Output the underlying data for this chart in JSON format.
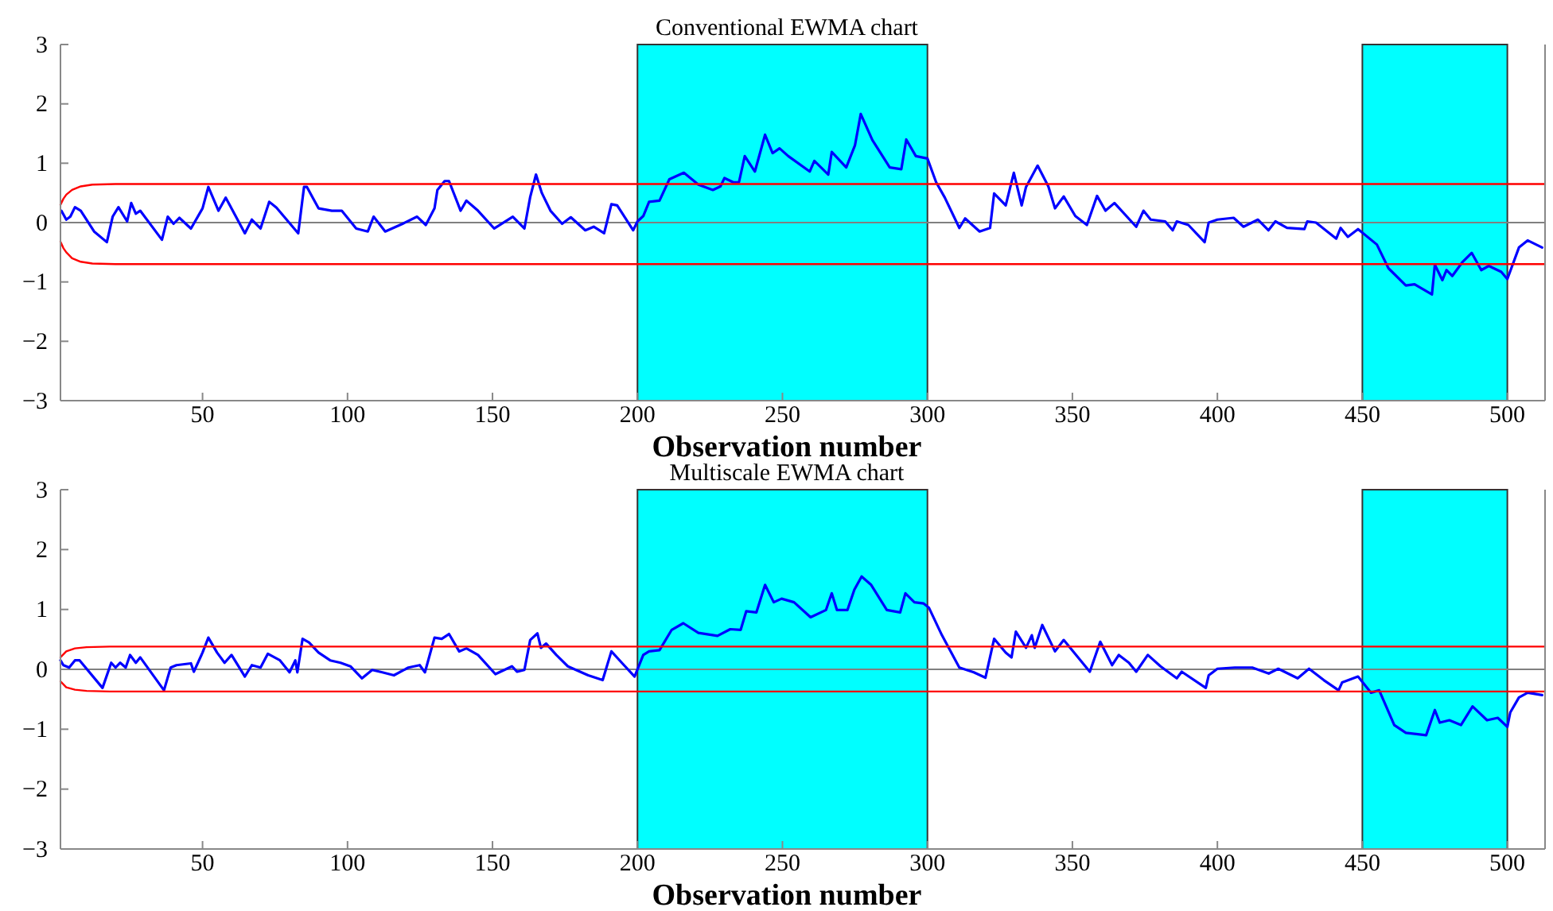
{
  "chart_data": [
    {
      "type": "line",
      "title": "Conventional EWMA chart",
      "xlabel": "Observation number",
      "xlim": [
        1,
        513
      ],
      "ylim": [
        -3,
        3
      ],
      "xticks": [
        50,
        100,
        150,
        200,
        250,
        300,
        350,
        400,
        450,
        500
      ],
      "yticks": [
        -3,
        -2,
        -1,
        0,
        1,
        2,
        3
      ],
      "bands": [
        {
          "axis": "x",
          "from": 200,
          "to": 300,
          "color": "#00ffff"
        },
        {
          "axis": "x",
          "from": 450,
          "to": 500,
          "color": "#00ffff"
        }
      ],
      "ref_lines": [
        {
          "axis": "y",
          "value": 0,
          "color": "#808080"
        }
      ],
      "series": [
        {
          "color": "#0000ff",
          "x": [
            1.3,
            3,
            4.4,
            6,
            8,
            12.6,
            17,
            19,
            21,
            24,
            25.4,
            27,
            28.5,
            36,
            38,
            40,
            42,
            46,
            50,
            52,
            55.5,
            58,
            64.6,
            67,
            70,
            73,
            75.5,
            83,
            85,
            86,
            90,
            94.6,
            98,
            103,
            107,
            109,
            113,
            119,
            124,
            127,
            130,
            131,
            133.5,
            135,
            139,
            141,
            145,
            150.6,
            157,
            161,
            163,
            165,
            167,
            170,
            174,
            177,
            182,
            184.9,
            188.5,
            191,
            193,
            198.5,
            200,
            202,
            204,
            207.6,
            211,
            216,
            221,
            226,
            228.6,
            230,
            233,
            235,
            237,
            240.5,
            244,
            246.6,
            249,
            252,
            259.4,
            261,
            265.8,
            267,
            272,
            275,
            277,
            281,
            287,
            291,
            292.7,
            296,
            300,
            303,
            306,
            311,
            313,
            318,
            321.6,
            323,
            327,
            329.8,
            332.5,
            334,
            338,
            341.7,
            344,
            347,
            351,
            355,
            358.5,
            361.4,
            364.5,
            372,
            374.5,
            377,
            382,
            384.6,
            386,
            390,
            395.6,
            397,
            400,
            405.6,
            409,
            414,
            417.6,
            420,
            424,
            430,
            431,
            434,
            441,
            442.5,
            445,
            448.5,
            455,
            459,
            465,
            468,
            474,
            475,
            477.6,
            479,
            481,
            484.6,
            487.7,
            491,
            493.6,
            497.9,
            500,
            504,
            507,
            512
          ],
          "values": [
            0.2,
            0.05,
            0.1,
            0.26,
            0.2,
            -0.15,
            -0.33,
            0.1,
            0.26,
            0.02,
            0.33,
            0.15,
            0.2,
            -0.29,
            0.1,
            -0.02,
            0.08,
            -0.1,
            0.24,
            0.6,
            0.2,
            0.42,
            -0.18,
            0.05,
            -0.1,
            0.35,
            0.25,
            -0.18,
            0.6,
            0.6,
            0.24,
            0.2,
            0.2,
            -0.1,
            -0.15,
            0.1,
            -0.15,
            -0.02,
            0.1,
            -0.04,
            0.24,
            0.55,
            0.7,
            0.7,
            0.2,
            0.37,
            0.2,
            -0.1,
            0.1,
            -0.1,
            0.43,
            0.81,
            0.5,
            0.2,
            -0.02,
            0.09,
            -0.13,
            -0.07,
            -0.18,
            0.31,
            0.29,
            -0.13,
            0.02,
            0.11,
            0.35,
            0.37,
            0.73,
            0.84,
            0.64,
            0.55,
            0.61,
            0.75,
            0.68,
            0.68,
            1.12,
            0.86,
            1.48,
            1.17,
            1.25,
            1.12,
            0.86,
            1.04,
            0.81,
            1.19,
            0.93,
            1.3,
            1.83,
            1.39,
            0.93,
            0.9,
            1.4,
            1.12,
            1.08,
            0.68,
            0.42,
            -0.09,
            0.07,
            -0.15,
            -0.09,
            0.49,
            0.29,
            0.84,
            0.29,
            0.6,
            0.96,
            0.61,
            0.24,
            0.44,
            0.11,
            -0.04,
            0.45,
            0.2,
            0.33,
            -0.07,
            0.2,
            0.05,
            0.02,
            -0.13,
            0.02,
            -0.04,
            -0.33,
            0,
            0.05,
            0.08,
            -0.07,
            0.05,
            -0.13,
            0.02,
            -0.09,
            -0.11,
            0.02,
            0,
            -0.27,
            -0.09,
            -0.24,
            -0.11,
            -0.37,
            -0.77,
            -1.06,
            -1.04,
            -1.21,
            -0.71,
            -0.97,
            -0.8,
            -0.9,
            -0.66,
            -0.51,
            -0.8,
            -0.73,
            -0.83,
            -0.95,
            -0.42,
            -0.3,
            -0.42
          ]
        },
        {
          "color": "#ff0000",
          "x": [
            1,
            2,
            3,
            5,
            8,
            12,
            20,
            513
          ],
          "values": [
            0.3,
            0.4,
            0.47,
            0.55,
            0.61,
            0.64,
            0.65,
            0.65
          ]
        },
        {
          "color": "#ff0000",
          "x": [
            1,
            2,
            3,
            5,
            8,
            12,
            20,
            513
          ],
          "values": [
            -0.32,
            -0.43,
            -0.5,
            -0.6,
            -0.66,
            -0.69,
            -0.7,
            -0.7
          ]
        }
      ]
    },
    {
      "type": "line",
      "title": "Multiscale EWMA chart",
      "xlabel": "Observation number",
      "xlim": [
        1,
        513
      ],
      "ylim": [
        -3,
        3
      ],
      "xticks": [
        50,
        100,
        150,
        200,
        250,
        300,
        350,
        400,
        450,
        500
      ],
      "yticks": [
        -3,
        -2,
        -1,
        0,
        1,
        2,
        3
      ],
      "bands": [
        {
          "axis": "x",
          "from": 200,
          "to": 300,
          "color": "#00ffff"
        },
        {
          "axis": "x",
          "from": 450,
          "to": 500,
          "color": "#00ffff"
        }
      ],
      "ref_lines": [
        {
          "axis": "y",
          "value": 0,
          "color": "#808080"
        }
      ],
      "series": [
        {
          "color": "#0000ff",
          "x": [
            1,
            2,
            4,
            6,
            7.6,
            15.5,
            18.5,
            20,
            21.6,
            23.5,
            25,
            27,
            28.5,
            36.7,
            39,
            41,
            46,
            47,
            50,
            52,
            55,
            57.6,
            60,
            64.6,
            67,
            70,
            72.5,
            76.7,
            80,
            82,
            82.7,
            84.5,
            86.7,
            90,
            94,
            97.6,
            101,
            105,
            108.5,
            112,
            116,
            121,
            124.9,
            126.7,
            130,
            132.5,
            135,
            138.5,
            141,
            145,
            151,
            156.7,
            158.5,
            161,
            163,
            165.5,
            166.7,
            168.5,
            172,
            176,
            183,
            188,
            191,
            194.6,
            199,
            202,
            204,
            207.6,
            211.8,
            215.8,
            221,
            227.6,
            232,
            235.6,
            237.5,
            241,
            244,
            247,
            249.7,
            254,
            259.7,
            265,
            267,
            268.8,
            272.4,
            274.8,
            277.3,
            280.6,
            286,
            290.6,
            292.4,
            295.5,
            298.7,
            300.5,
            305,
            311,
            316,
            320,
            323,
            327,
            329,
            330.5,
            334,
            336,
            337,
            339.6,
            344,
            347,
            356,
            359.6,
            363.7,
            366,
            369.5,
            372,
            376,
            380.4,
            386,
            387.7,
            396,
            397,
            400,
            406,
            412,
            417.7,
            421,
            427.7,
            431.6,
            436.7,
            441.8,
            443,
            448.5,
            453,
            455.8,
            461,
            465,
            472,
            475,
            476.7,
            480,
            484,
            488,
            493,
            496.7,
            500,
            501,
            504,
            507,
            512
          ],
          "values": [
            0.15,
            0.07,
            0.03,
            0.15,
            0.15,
            -0.31,
            0.11,
            0.03,
            0.11,
            0.03,
            0.24,
            0.11,
            0.2,
            -0.35,
            0.03,
            0.07,
            0.1,
            -0.04,
            0.28,
            0.53,
            0.28,
            0.11,
            0.24,
            -0.12,
            0.07,
            0.03,
            0.26,
            0.15,
            -0.05,
            0.15,
            -0.05,
            0.51,
            0.45,
            0.28,
            0.15,
            0.11,
            0.05,
            -0.15,
            -0.01,
            -0.05,
            -0.1,
            0.03,
            0.07,
            -0.05,
            0.53,
            0.51,
            0.59,
            0.3,
            0.35,
            0.24,
            -0.08,
            0.05,
            -0.04,
            -0.01,
            0.49,
            0.6,
            0.36,
            0.43,
            0.24,
            0.05,
            -0.1,
            -0.18,
            0.3,
            0.11,
            -0.12,
            0.24,
            0.3,
            0.32,
            0.66,
            0.77,
            0.61,
            0.56,
            0.67,
            0.66,
            0.97,
            0.95,
            1.41,
            1.12,
            1.18,
            1.12,
            0.87,
            0.99,
            1.27,
            0.99,
            0.99,
            1.33,
            1.55,
            1.41,
            0.99,
            0.95,
            1.27,
            1.12,
            1.1,
            1.03,
            0.57,
            0.03,
            -0.05,
            -0.14,
            0.51,
            0.28,
            0.2,
            0.63,
            0.36,
            0.57,
            0.36,
            0.74,
            0.3,
            0.49,
            -0.04,
            0.46,
            0.07,
            0.24,
            0.11,
            -0.04,
            0.24,
            0.05,
            -0.15,
            -0.04,
            -0.31,
            -0.1,
            0.01,
            0.03,
            0.03,
            -0.07,
            0.01,
            -0.15,
            0.01,
            -0.18,
            -0.35,
            -0.22,
            -0.12,
            -0.39,
            -0.35,
            -0.93,
            -1.06,
            -1.1,
            -0.68,
            -0.89,
            -0.85,
            -0.93,
            -0.62,
            -0.85,
            -0.81,
            -0.96,
            -0.72,
            -0.47,
            -0.39,
            -0.43
          ]
        },
        {
          "color": "#ff0000",
          "x": [
            1,
            3,
            6,
            10,
            18,
            513
          ],
          "values": [
            0.2,
            0.3,
            0.35,
            0.37,
            0.38,
            0.38
          ]
        },
        {
          "color": "#ff0000",
          "x": [
            1,
            3,
            6,
            10,
            18,
            513
          ],
          "values": [
            -0.2,
            -0.3,
            -0.34,
            -0.36,
            -0.37,
            -0.37
          ]
        }
      ]
    }
  ]
}
